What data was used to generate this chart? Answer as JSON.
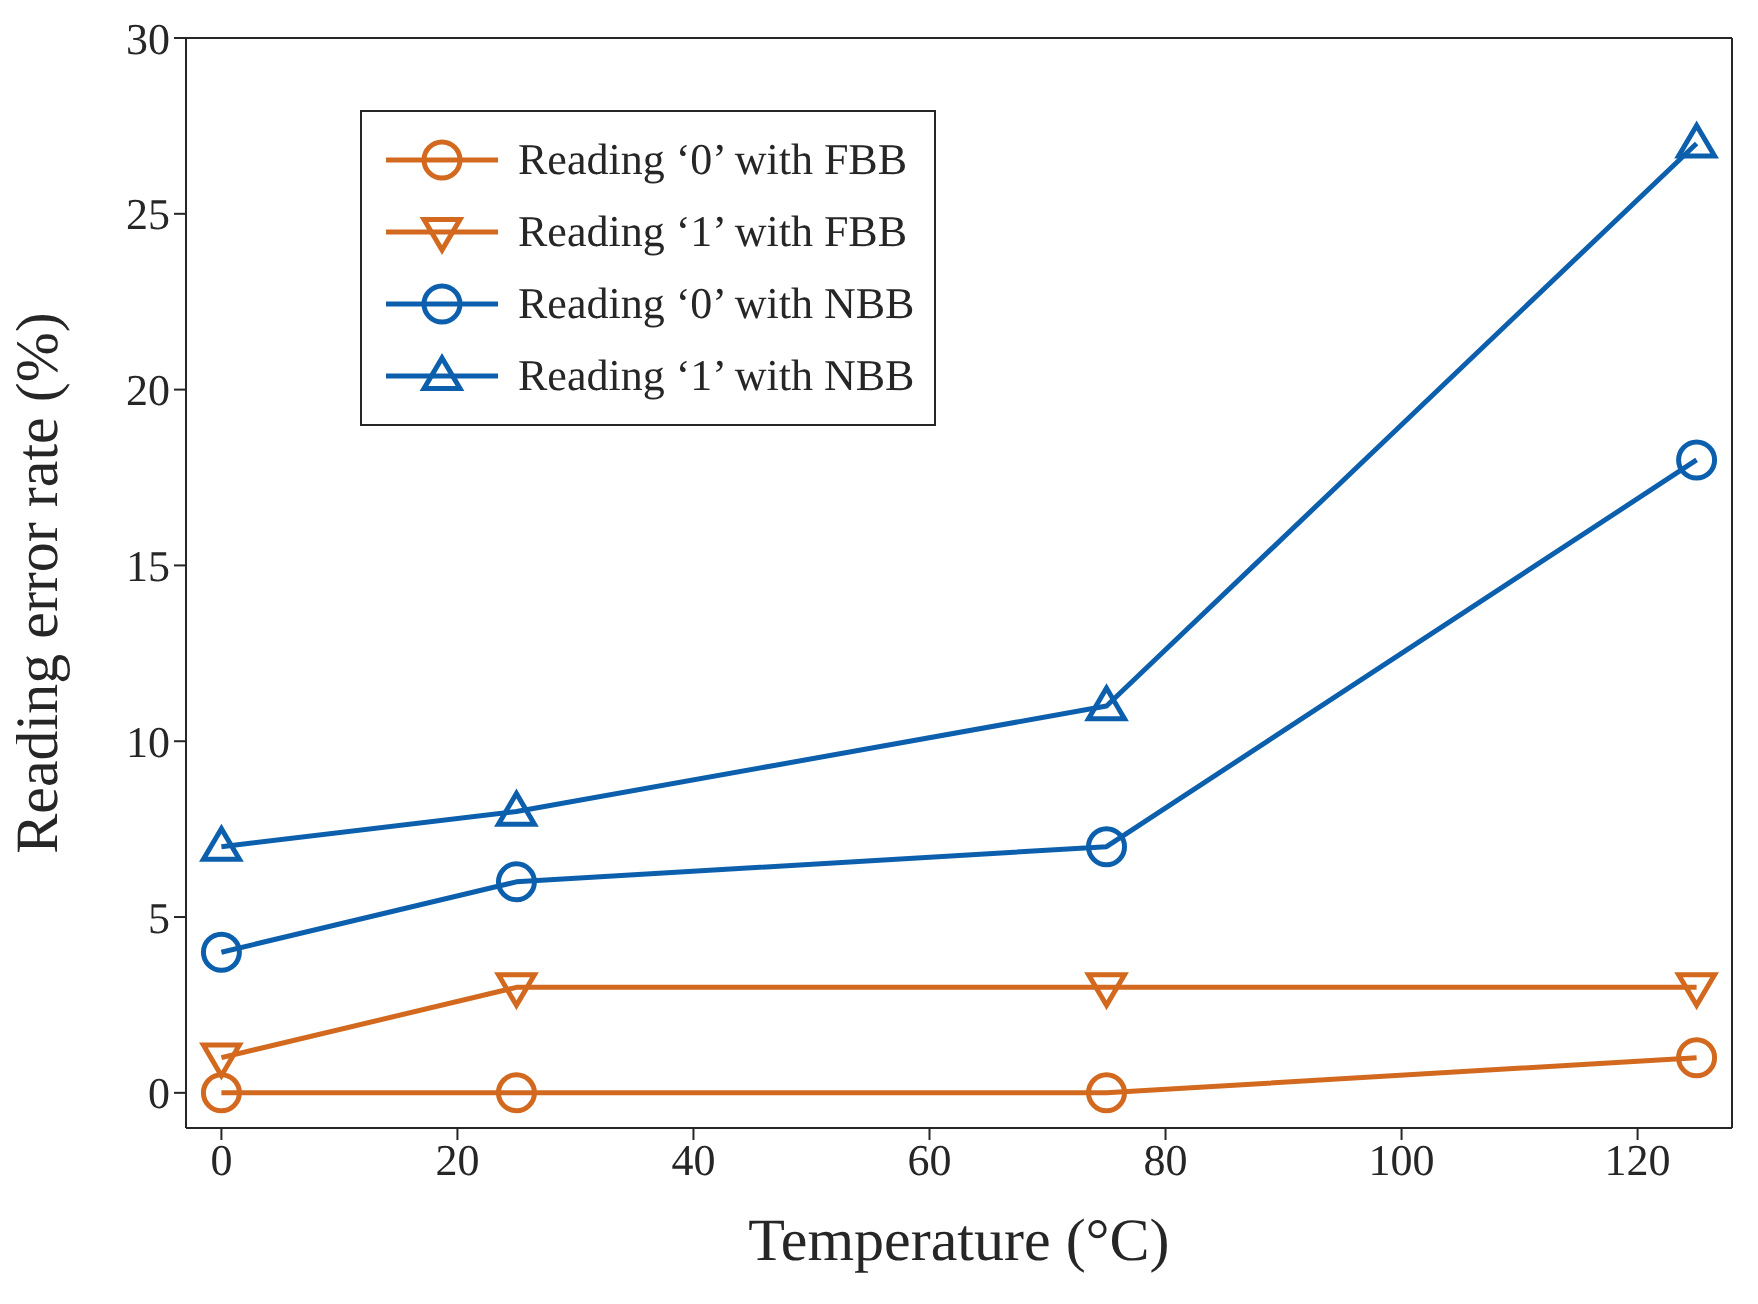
{
  "chart_data": {
    "type": "line",
    "xlabel": "Temperature (°C)",
    "ylabel": "Reading error rate (%)",
    "x": [
      0,
      25,
      75,
      125
    ],
    "series": [
      {
        "name": "Reading ‘0’ with FBB",
        "color": "#d2691e",
        "marker": "circle",
        "values": [
          0,
          0,
          0,
          1
        ]
      },
      {
        "name": "Reading ‘1’ with FBB",
        "color": "#d2691e",
        "marker": "triangle-down",
        "values": [
          1,
          3,
          3,
          3
        ]
      },
      {
        "name": "Reading ‘0’ with NBB",
        "color": "#0b5fac",
        "marker": "circle",
        "values": [
          4,
          6,
          7,
          18
        ]
      },
      {
        "name": "Reading ‘1’ with NBB",
        "color": "#0b5fac",
        "marker": "triangle",
        "values": [
          7,
          8,
          11,
          27
        ]
      }
    ],
    "xlim": [
      -3,
      128
    ],
    "xticks": [
      0,
      20,
      40,
      60,
      80,
      100,
      120
    ],
    "ylim": [
      -1,
      30
    ],
    "yticks": [
      0,
      5,
      10,
      15,
      20,
      25,
      30
    ],
    "grid": false,
    "legend": "top left",
    "line_style": "solid"
  }
}
